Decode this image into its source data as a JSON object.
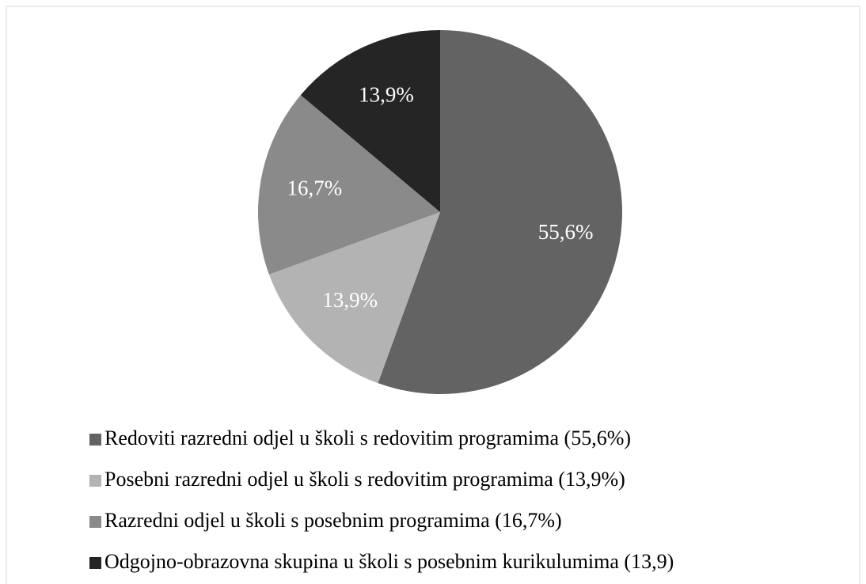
{
  "chart_data": {
    "type": "pie",
    "categories": [
      "Redoviti razredni odjel u školi s redovitim programima (55,6%)",
      "Posebni razredni odjel u školi s redovitim programima (13,9%)",
      "Razredni odjel u školi s posebnim programima (16,7%)",
      "Odgojno-obrazovna skupina u školi s posebnim kurikulumima (13,9)"
    ],
    "values": [
      55.6,
      13.9,
      16.7,
      13.9
    ],
    "value_labels": [
      "55,6%",
      "13,9%",
      "16,7%",
      "13,9%"
    ],
    "colors": [
      "#636363",
      "#b3b3b3",
      "#8a8a8a",
      "#252525"
    ],
    "legend": "bottom"
  }
}
